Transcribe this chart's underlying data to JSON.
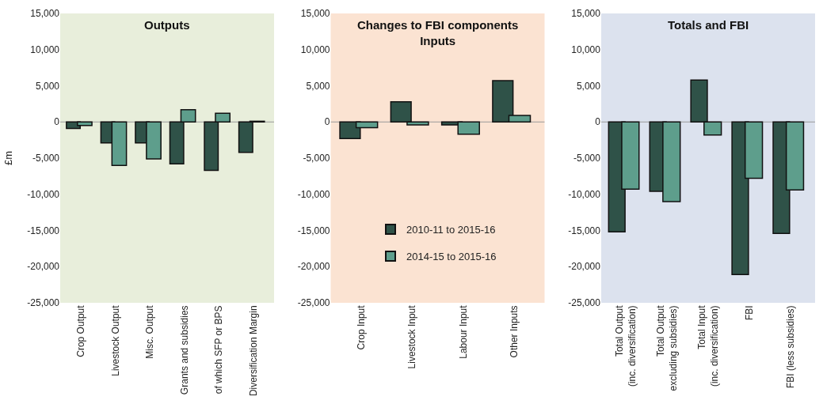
{
  "chart_data": [
    {
      "type": "bar",
      "title": "Outputs",
      "ylabel": "£m",
      "categories": [
        "Crop Output",
        "Livestock Output",
        "Misc. Output",
        "Grants and subsidies",
        "of which SFP or BPS",
        "Diversification Margin"
      ],
      "series": [
        {
          "color": "#2f5248",
          "values": [
            -900,
            -2900,
            -2900,
            -5800,
            -6700,
            -4200
          ]
        },
        {
          "color": "#5e9e8c",
          "values": [
            -500,
            -6000,
            -5100,
            1700,
            1200,
            100
          ]
        }
      ],
      "ylim": [
        -25000,
        15000
      ],
      "yticks": [
        {
          "value": -25000,
          "label": "-25,000"
        },
        {
          "value": -20000,
          "label": "-20,000"
        },
        {
          "value": -15000,
          "label": "-15,000"
        },
        {
          "value": -10000,
          "label": "-10,000"
        },
        {
          "value": -5000,
          "label": "-5,000"
        },
        0,
        {
          "value": 5000,
          "label": "5,000"
        },
        {
          "value": 10000,
          "label": "10,000"
        },
        {
          "value": 15000,
          "label": "15,000"
        }
      ],
      "grid": false,
      "legend": false,
      "ref_lines": [
        {
          "axis": "y",
          "value": 0,
          "color": "#999999"
        }
      ]
    },
    {
      "type": "bar",
      "title": "Changes to FBI components\nInputs",
      "categories": [
        "Crop Input",
        "Livestock Input",
        "Labour Input",
        "Other Inputs"
      ],
      "series": [
        {
          "name": "2010-11 to 2015-16",
          "color": "#2f5248",
          "values": [
            -2300,
            2800,
            -400,
            5700
          ]
        },
        {
          "name": "2014-15 to 2015-16",
          "color": "#5e9e8c",
          "values": [
            -800,
            -400,
            -1700,
            900
          ]
        }
      ],
      "ylim": [
        -25000,
        15000
      ],
      "yticks": [
        {
          "value": -25000,
          "label": "-25,000"
        },
        {
          "value": -20000,
          "label": "-20,000"
        },
        {
          "value": -15000,
          "label": "-15,000"
        },
        {
          "value": -10000,
          "label": "-10,000"
        },
        {
          "value": -5000,
          "label": "-5,000"
        },
        0,
        {
          "value": 5000,
          "label": "5,000"
        },
        {
          "value": 10000,
          "label": "10,000"
        },
        {
          "value": 15000,
          "label": "15,000"
        }
      ],
      "grid": false,
      "legend": "bottom",
      "ref_lines": [
        {
          "axis": "y",
          "value": 0,
          "color": "#999999"
        }
      ]
    },
    {
      "type": "bar",
      "title": "Totals and FBI",
      "categories": [
        "Total Output\n(inc. diversification)",
        "Total Output\nexcluding subsidies)",
        "Total Input\n(inc. diversification)",
        "FBI",
        "FBI (less subsidies)"
      ],
      "series": [
        {
          "color": "#2f5248",
          "values": [
            -15200,
            -9600,
            5800,
            -21100,
            -15400
          ]
        },
        {
          "color": "#5e9e8c",
          "values": [
            -9300,
            -11000,
            -1800,
            -7800,
            -9400
          ]
        }
      ],
      "ylim": [
        -25000,
        15000
      ],
      "yticks": [
        {
          "value": -25000,
          "label": "-25,000"
        },
        {
          "value": -20000,
          "label": "-20,000"
        },
        {
          "value": -15000,
          "label": "-15,000"
        },
        {
          "value": -10000,
          "label": "-10,000"
        },
        {
          "value": -5000,
          "label": "-5,000"
        },
        0,
        {
          "value": 5000,
          "label": "5,000"
        },
        {
          "value": 10000,
          "label": "10,000"
        },
        {
          "value": 15000,
          "label": "15,000"
        }
      ],
      "grid": false,
      "legend": false,
      "ref_lines": [
        {
          "axis": "y",
          "value": 0,
          "color": "#999999"
        }
      ]
    }
  ]
}
